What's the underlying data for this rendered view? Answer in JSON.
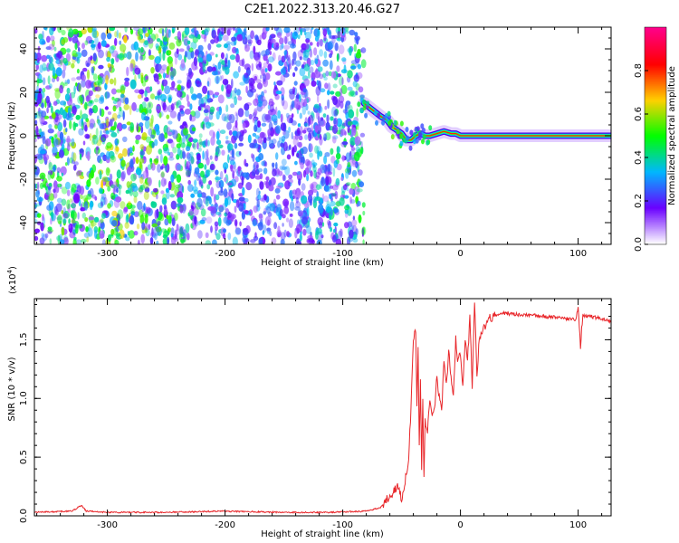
{
  "title": "C2E1.2022.313.20.46.G27",
  "chart_data": [
    {
      "type": "heatmap",
      "xlabel": "Height of straight line (km)",
      "ylabel": "Frequency (Hz)",
      "xlim": [
        -362,
        128
      ],
      "ylim": [
        -50,
        50
      ],
      "xticks": [
        -300,
        -200,
        -100,
        0,
        100
      ],
      "xtick_labels": [
        "-300",
        "-200",
        "-100",
        "0",
        "100"
      ],
      "yticks": [
        -40,
        -20,
        0,
        20,
        40
      ],
      "ytick_labels": [
        "-40",
        "-20",
        "0",
        "20",
        "40"
      ],
      "noise_region_x": [
        -362,
        -82
      ],
      "signal_track": {
        "x": [
          -82,
          -75,
          -68,
          -62,
          -58,
          -55,
          -50,
          -46,
          -42,
          -38,
          -34,
          -30,
          -26,
          -20,
          -14,
          -8,
          -4,
          0,
          10,
          40,
          80,
          128
        ],
        "y": [
          15,
          12,
          9,
          7,
          4,
          3,
          1,
          -2,
          -2,
          0,
          1,
          0,
          0,
          1,
          2,
          1,
          1,
          0,
          0,
          0,
          0,
          0
        ]
      },
      "colorbar": {
        "label": "Normalized spectral amplitude",
        "range": [
          0,
          1
        ],
        "ticks": [
          0.0,
          0.2,
          0.4,
          0.6,
          0.8
        ],
        "tick_labels": [
          "0.0",
          "0.2",
          "0.4",
          "0.6",
          "0.8"
        ],
        "colors": [
          "#ffffff",
          "#6a00ff",
          "#00b7ff",
          "#00ff00",
          "#ffd000",
          "#ff0000",
          "#ff0088"
        ]
      }
    },
    {
      "type": "line",
      "xlabel": "Height of straight line (km)",
      "ylabel": "SNR (10 * v/v)",
      "y_multiplier_label": "(x10",
      "y_multiplier_exponent": "4",
      "y_multiplier_close": ")",
      "xlim": [
        -362,
        128
      ],
      "ylim": [
        0,
        1.85
      ],
      "xticks": [
        -300,
        -200,
        -100,
        0,
        100
      ],
      "xtick_labels": [
        "-300",
        "-200",
        "-100",
        "0",
        "100"
      ],
      "yticks": [
        0.0,
        0.5,
        1.0,
        1.5
      ],
      "ytick_labels": [
        "0.0",
        "0.5",
        "1.0",
        "1.5"
      ],
      "series": [
        {
          "color": "#e8262a",
          "x": [
            -362,
            -330,
            -322,
            -318,
            -300,
            -250,
            -200,
            -150,
            -110,
            -80,
            -68,
            -62,
            -58,
            -54,
            -50,
            -47,
            -44,
            -42,
            -40,
            -38,
            -37,
            -36,
            -35,
            -34,
            -33,
            -32,
            -31,
            -30,
            -28,
            -26,
            -24,
            -22,
            -20,
            -18,
            -16,
            -14,
            -12,
            -10,
            -8,
            -6,
            -4,
            -2,
            0,
            2,
            4,
            6,
            8,
            10,
            12,
            14,
            16,
            18,
            20,
            24,
            28,
            32,
            36,
            40,
            60,
            80,
            98,
            100,
            102,
            104,
            110,
            128
          ],
          "y": [
            0.03,
            0.04,
            0.09,
            0.04,
            0.03,
            0.03,
            0.04,
            0.03,
            0.03,
            0.04,
            0.07,
            0.15,
            0.2,
            0.25,
            0.15,
            0.3,
            0.5,
            0.9,
            1.5,
            1.58,
            0.9,
            1.4,
            0.6,
            1.2,
            0.4,
            1.0,
            0.3,
            0.8,
            0.7,
            1.0,
            0.85,
            0.9,
            1.2,
            1.0,
            0.9,
            1.3,
            1.1,
            1.4,
            1.2,
            1.0,
            1.5,
            1.3,
            1.4,
            1.1,
            1.5,
            1.3,
            1.7,
            1.1,
            1.85,
            1.2,
            1.5,
            1.55,
            1.6,
            1.68,
            1.7,
            1.72,
            1.73,
            1.72,
            1.71,
            1.69,
            1.67,
            1.77,
            1.45,
            1.7,
            1.7,
            1.66
          ]
        }
      ]
    }
  ]
}
